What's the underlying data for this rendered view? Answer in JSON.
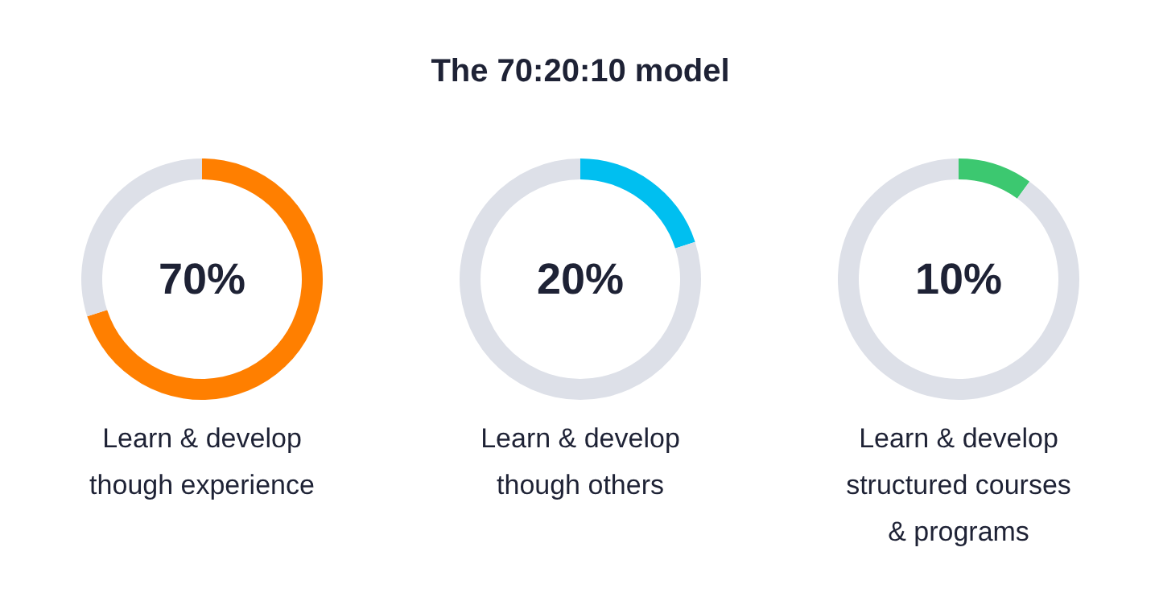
{
  "chart_data": [
    {
      "type": "donut",
      "xlabel": "Learn & develop though experience",
      "categories": [
        null,
        null
      ],
      "values": [
        70,
        30
      ],
      "colors": [
        "#ff7f00",
        "#dde0e8"
      ],
      "annotations": [
        "70%"
      ]
    },
    {
      "type": "donut",
      "title": "The 70:20:10 model",
      "xlabel": "Learn & develop though others",
      "categories": [
        null,
        null
      ],
      "values": [
        20,
        80
      ],
      "colors": [
        "#00bff0",
        "#dde0e8"
      ],
      "annotations": [
        "20%"
      ]
    },
    {
      "type": "donut",
      "xlabel": "Learn & develop structured courses & programs",
      "categories": [
        null,
        null
      ],
      "values": [
        10,
        90
      ],
      "colors": [
        "#3cc870",
        "#dde0e8"
      ],
      "annotations": [
        "10%"
      ]
    }
  ]
}
